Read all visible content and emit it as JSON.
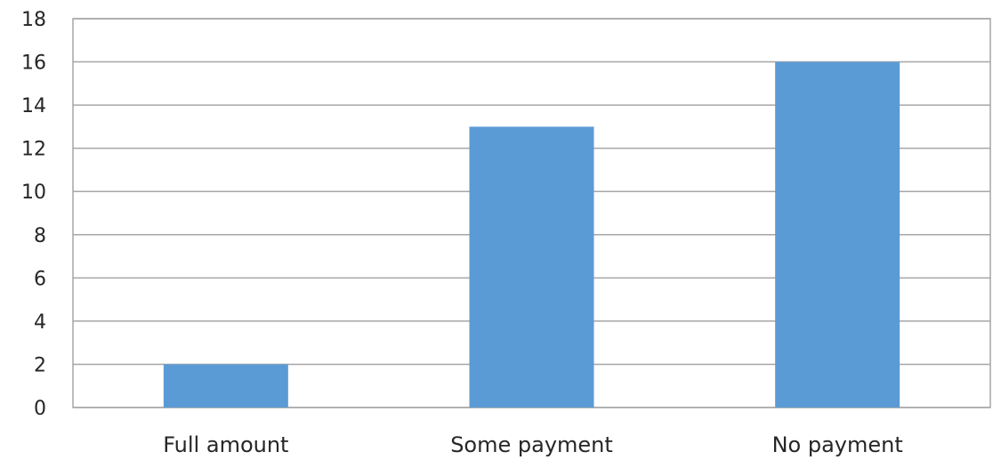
{
  "chart_data": {
    "type": "bar",
    "title": "",
    "xlabel": "",
    "ylabel": "",
    "categories": [
      "Full amount",
      "Some payment",
      "No payment"
    ],
    "values": [
      2,
      13,
      16
    ],
    "ylim": [
      0,
      18
    ],
    "y_ticks": [
      "0",
      "2",
      "4",
      "6",
      "8",
      "10",
      "12",
      "14",
      "16",
      "18"
    ],
    "grid": true,
    "legend": "none",
    "bar_color": "#5b9bd5"
  }
}
